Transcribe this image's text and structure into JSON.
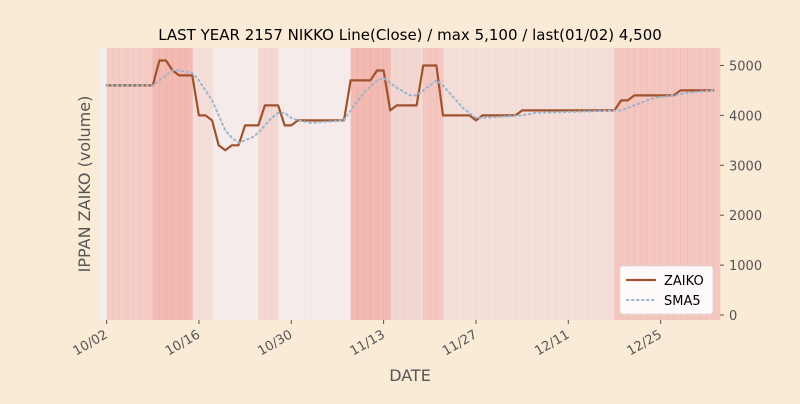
{
  "chart_data": {
    "type": "line",
    "title": "LAST YEAR 2157 NIKKO Line(Close) / max 5,100 / last(01/02) 4,500",
    "xlabel": "DATE",
    "ylabel": "IPPAN ZAIKO (volume)",
    "ylim": [
      -100,
      5350
    ],
    "y_ticks": [
      0,
      1000,
      2000,
      3000,
      4000,
      5000
    ],
    "y_tick_labels": [
      "0",
      "1000",
      "2000",
      "3000",
      "4000",
      "5000"
    ],
    "y_axis_side": "right",
    "x_range": [
      "2024-10-01",
      "2025-01-03"
    ],
    "x_ticks": [
      "2024-10-02",
      "2024-10-16",
      "2024-10-30",
      "2024-11-13",
      "2024-11-27",
      "2024-12-11",
      "2024-12-25"
    ],
    "x_tick_labels": [
      "10/02",
      "10/16",
      "10/30",
      "11/13",
      "11/27",
      "12/11",
      "12/25"
    ],
    "grid": false,
    "legend_position": "bottom-right",
    "colors": {
      "background": "#faebd7",
      "plot_background": "#f5f5f5",
      "zaiko": "#a0522d",
      "sma5": "#9ab5cc",
      "band": "#f08070",
      "text": "#555555"
    },
    "background_bands": {
      "start": "2024-10-01",
      "opacity": [
        0.06,
        0.35,
        0.35,
        0.35,
        0.35,
        0.35,
        0.35,
        0.35,
        0.5,
        0.5,
        0.5,
        0.5,
        0.5,
        0.5,
        0.2,
        0.2,
        0.2,
        0.08,
        0.08,
        0.08,
        0.08,
        0.08,
        0.08,
        0.08,
        0.25,
        0.25,
        0.25,
        0.08,
        0.08,
        0.08,
        0.08,
        0.08,
        0.08,
        0.08,
        0.08,
        0.08,
        0.08,
        0.08,
        0.5,
        0.5,
        0.5,
        0.5,
        0.5,
        0.5,
        0.25,
        0.25,
        0.25,
        0.25,
        0.25,
        0.4,
        0.4,
        0.4,
        0.2,
        0.2,
        0.2,
        0.2,
        0.2,
        0.2,
        0.2,
        0.2,
        0.2,
        0.2,
        0.2,
        0.2,
        0.2,
        0.2,
        0.2,
        0.2,
        0.2,
        0.2,
        0.2,
        0.2,
        0.2,
        0.2,
        0.2,
        0.2,
        0.2,
        0.2,
        0.4,
        0.4,
        0.4,
        0.4,
        0.4,
        0.4,
        0.4,
        0.4,
        0.4,
        0.4,
        0.4,
        0.4,
        0.4,
        0.4,
        0.4,
        0.4
      ]
    },
    "series": [
      {
        "name": "ZAIKO",
        "style": "solid",
        "points": [
          [
            "2024-10-02",
            4600
          ],
          [
            "2024-10-09",
            4600
          ],
          [
            "2024-10-10",
            5100
          ],
          [
            "2024-10-11",
            5100
          ],
          [
            "2024-10-12",
            4900
          ],
          [
            "2024-10-13",
            4800
          ],
          [
            "2024-10-15",
            4800
          ],
          [
            "2024-10-16",
            4000
          ],
          [
            "2024-10-17",
            4000
          ],
          [
            "2024-10-18",
            3900
          ],
          [
            "2024-10-19",
            3400
          ],
          [
            "2024-10-20",
            3300
          ],
          [
            "2024-10-21",
            3400
          ],
          [
            "2024-10-22",
            3400
          ],
          [
            "2024-10-23",
            3800
          ],
          [
            "2024-10-25",
            3800
          ],
          [
            "2024-10-26",
            4200
          ],
          [
            "2024-10-28",
            4200
          ],
          [
            "2024-10-29",
            3800
          ],
          [
            "2024-10-30",
            3800
          ],
          [
            "2024-10-31",
            3900
          ],
          [
            "2024-11-07",
            3900
          ],
          [
            "2024-11-08",
            4700
          ],
          [
            "2024-11-11",
            4700
          ],
          [
            "2024-11-12",
            4900
          ],
          [
            "2024-11-13",
            4900
          ],
          [
            "2024-11-14",
            4100
          ],
          [
            "2024-11-15",
            4200
          ],
          [
            "2024-11-18",
            4200
          ],
          [
            "2024-11-19",
            5000
          ],
          [
            "2024-11-21",
            5000
          ],
          [
            "2024-11-22",
            4000
          ],
          [
            "2024-11-26",
            4000
          ],
          [
            "2024-11-27",
            3900
          ],
          [
            "2024-11-28",
            4000
          ],
          [
            "2024-12-03",
            4000
          ],
          [
            "2024-12-04",
            4100
          ],
          [
            "2024-12-18",
            4100
          ],
          [
            "2024-12-19",
            4300
          ],
          [
            "2024-12-20",
            4300
          ],
          [
            "2024-12-21",
            4400
          ],
          [
            "2024-12-27",
            4400
          ],
          [
            "2024-12-28",
            4500
          ],
          [
            "2025-01-02",
            4500
          ]
        ]
      },
      {
        "name": "SMA5",
        "style": "dotted",
        "points": [
          [
            "2024-10-02",
            4600
          ],
          [
            "2024-10-09",
            4600
          ],
          [
            "2024-10-11",
            4800
          ],
          [
            "2024-10-12",
            4900
          ],
          [
            "2024-10-13",
            4900
          ],
          [
            "2024-10-15",
            4850
          ],
          [
            "2024-10-16",
            4700
          ],
          [
            "2024-10-17",
            4500
          ],
          [
            "2024-10-18",
            4300
          ],
          [
            "2024-10-19",
            4000
          ],
          [
            "2024-10-20",
            3700
          ],
          [
            "2024-10-21",
            3550
          ],
          [
            "2024-10-22",
            3450
          ],
          [
            "2024-10-24",
            3550
          ],
          [
            "2024-10-25",
            3650
          ],
          [
            "2024-10-27",
            3950
          ],
          [
            "2024-10-28",
            4050
          ],
          [
            "2024-10-29",
            4050
          ],
          [
            "2024-10-30",
            3950
          ],
          [
            "2024-10-31",
            3900
          ],
          [
            "2024-11-02",
            3850
          ],
          [
            "2024-11-07",
            3900
          ],
          [
            "2024-11-08",
            4100
          ],
          [
            "2024-11-10",
            4450
          ],
          [
            "2024-11-12",
            4700
          ],
          [
            "2024-11-13",
            4750
          ],
          [
            "2024-11-15",
            4550
          ],
          [
            "2024-11-17",
            4400
          ],
          [
            "2024-11-18",
            4400
          ],
          [
            "2024-11-19",
            4500
          ],
          [
            "2024-11-21",
            4700
          ],
          [
            "2024-11-22",
            4600
          ],
          [
            "2024-11-25",
            4150
          ],
          [
            "2024-11-27",
            3950
          ],
          [
            "2024-11-28",
            3950
          ],
          [
            "2024-12-04",
            4000
          ],
          [
            "2024-12-06",
            4050
          ],
          [
            "2024-12-19",
            4100
          ],
          [
            "2024-12-20",
            4150
          ],
          [
            "2024-12-22",
            4250
          ],
          [
            "2024-12-24",
            4350
          ],
          [
            "2024-12-27",
            4400
          ],
          [
            "2024-12-29",
            4450
          ],
          [
            "2025-01-02",
            4500
          ]
        ]
      }
    ]
  }
}
